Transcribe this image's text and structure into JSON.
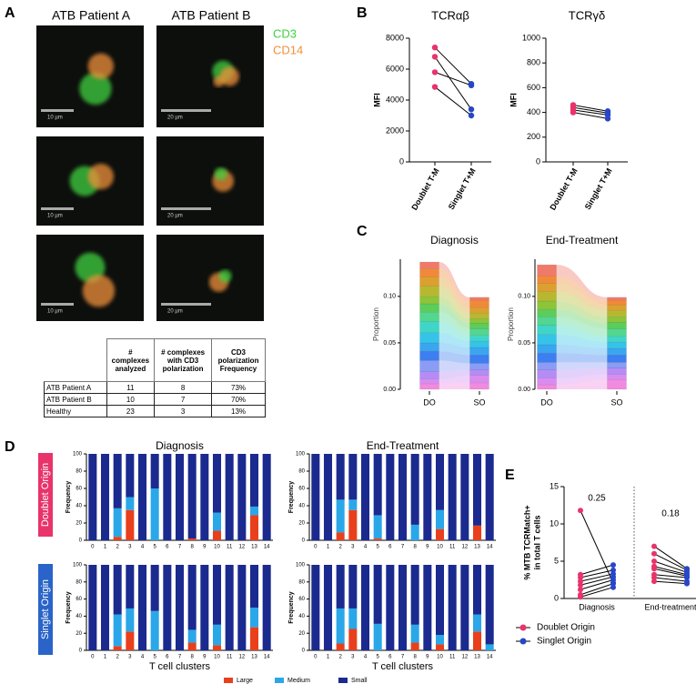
{
  "panel_labels": [
    "A",
    "B",
    "C",
    "D",
    "E"
  ],
  "panel_a": {
    "columns": [
      "ATB Patient A",
      "ATB Patient B"
    ],
    "channels": [
      {
        "name": "CD3",
        "color": "#3fd13f"
      },
      {
        "name": "CD14",
        "color": "#f0903a"
      }
    ],
    "scale_bars": [
      "10 µm",
      "20 µm"
    ]
  },
  "table": {
    "header": [
      "# complexes analyzed",
      "# complexes with CD3 polarization",
      "CD3 polarization Frequency"
    ],
    "rows": [
      [
        "ATB Patient A",
        11,
        8,
        "73%"
      ],
      [
        "ATB Patient B",
        10,
        7,
        "70%"
      ],
      [
        "Healthy",
        23,
        3,
        "13%"
      ]
    ]
  },
  "panel_d": {
    "rows": [
      "Doublet Origin",
      "Singlet Origin"
    ]
  },
  "chart_data": [
    {
      "type": "paired",
      "title": "TCRαβ",
      "ylabel": "MFI",
      "categories": [
        "Doublet T-M",
        "Singlet T+M"
      ],
      "colors": [
        "#e8336b",
        "#2846c8"
      ],
      "ylim": [
        0,
        8000
      ],
      "yticks": [
        0,
        2000,
        4000,
        6000,
        8000
      ],
      "series": [
        {
          "values": [
            7400,
            5050
          ]
        },
        {
          "values": [
            6800,
            3400
          ]
        },
        {
          "values": [
            5800,
            4950
          ]
        },
        {
          "values": [
            4850,
            3000
          ]
        }
      ]
    },
    {
      "type": "paired",
      "title": "TCRγδ",
      "ylabel": "MFI",
      "categories": [
        "Doublet T-M",
        "Singlet T+M"
      ],
      "colors": [
        "#e8336b",
        "#2846c8"
      ],
      "ylim": [
        0,
        1000
      ],
      "yticks": [
        0,
        200,
        400,
        600,
        800,
        1000
      ],
      "series": [
        {
          "values": [
            460,
            410
          ]
        },
        {
          "values": [
            440,
            395
          ]
        },
        {
          "values": [
            420,
            380
          ]
        },
        {
          "values": [
            400,
            350
          ]
        }
      ]
    },
    {
      "type": "alluvial",
      "title": "Diagnosis",
      "ylabel": "Proportion",
      "categories": [
        "DO",
        "SO"
      ],
      "ylim": [
        0,
        0.14
      ],
      "yticks": [
        {
          "value": 0,
          "label": "0.00"
        },
        0.05,
        {
          "value": 0.1,
          "label": "0.10"
        }
      ],
      "series": [
        {
          "color": "#f08be0",
          "values": [
            0.006,
            0.007
          ]
        },
        {
          "color": "#d98bf0",
          "values": [
            0.005,
            0.008
          ]
        },
        {
          "color": "#b58cf5",
          "values": [
            0.008,
            0.006
          ]
        },
        {
          "color": "#8a9cf5",
          "values": [
            0.012,
            0.007
          ]
        },
        {
          "color": "#3d7ef0",
          "values": [
            0.01,
            0.009
          ]
        },
        {
          "color": "#3aa6f0",
          "values": [
            0.009,
            0.008
          ]
        },
        {
          "color": "#35c3e8",
          "values": [
            0.011,
            0.007
          ]
        },
        {
          "color": "#3fd6c8",
          "values": [
            0.012,
            0.006
          ]
        },
        {
          "color": "#52d690",
          "values": [
            0.01,
            0.007
          ]
        },
        {
          "color": "#5ccc5a",
          "values": [
            0.009,
            0.006
          ]
        },
        {
          "color": "#8cc43a",
          "values": [
            0.008,
            0.005
          ]
        },
        {
          "color": "#b8b830",
          "values": [
            0.011,
            0.006
          ]
        },
        {
          "color": "#dca030",
          "values": [
            0.01,
            0.006
          ]
        },
        {
          "color": "#f08a3a",
          "values": [
            0.009,
            0.008
          ]
        },
        {
          "color": "#f07a6a",
          "values": [
            0.007,
            0.003
          ]
        }
      ]
    },
    {
      "type": "alluvial",
      "title": "End-Treatment",
      "ylabel": "Proportion",
      "categories": [
        "DO",
        "SO"
      ],
      "ylim": [
        0,
        0.14
      ],
      "yticks": [
        {
          "value": 0,
          "label": "0.00"
        },
        0.05,
        {
          "value": 0.1,
          "label": "0.10"
        }
      ],
      "series": [
        {
          "color": "#f08be0",
          "values": [
            0.005,
            0.01
          ]
        },
        {
          "color": "#d98bf0",
          "values": [
            0.007,
            0.006
          ]
        },
        {
          "color": "#b58cf5",
          "values": [
            0.009,
            0.007
          ]
        },
        {
          "color": "#8a9cf5",
          "values": [
            0.008,
            0.006
          ]
        },
        {
          "color": "#3d7ef0",
          "values": [
            0.01,
            0.008
          ]
        },
        {
          "color": "#3aa6f0",
          "values": [
            0.009,
            0.007
          ]
        },
        {
          "color": "#35c3e8",
          "values": [
            0.011,
            0.007
          ]
        },
        {
          "color": "#3fd6c8",
          "values": [
            0.01,
            0.006
          ]
        },
        {
          "color": "#52d690",
          "values": [
            0.009,
            0.008
          ]
        },
        {
          "color": "#5ccc5a",
          "values": [
            0.008,
            0.007
          ]
        },
        {
          "color": "#8cc43a",
          "values": [
            0.009,
            0.006
          ]
        },
        {
          "color": "#b8b830",
          "values": [
            0.01,
            0.007
          ]
        },
        {
          "color": "#dca030",
          "values": [
            0.009,
            0.006
          ]
        },
        {
          "color": "#f08a3a",
          "values": [
            0.008,
            0.005
          ]
        },
        {
          "color": "#f07a6a",
          "values": [
            0.012,
            0.003
          ]
        }
      ]
    },
    {
      "type": "stacked_bar",
      "title": "Diagnosis",
      "ylabel": "Frequency",
      "categories": [
        "0",
        "1",
        "2",
        "3",
        "4",
        "5",
        "6",
        "7",
        "8",
        "9",
        "10",
        "11",
        "12",
        "13",
        "14"
      ],
      "ylim": [
        0,
        100
      ],
      "yticks": [
        0,
        20,
        40,
        60,
        80,
        100
      ],
      "series": [
        {
          "name": "Large",
          "color": "#e8401c",
          "values": [
            0,
            0,
            4,
            35,
            0,
            0,
            0,
            0,
            2,
            0,
            11,
            0,
            0,
            29,
            0
          ]
        },
        {
          "name": "Medium",
          "color": "#2aa7e8",
          "values": [
            0,
            0,
            33,
            15,
            0,
            60,
            0,
            0,
            0,
            0,
            21,
            0,
            0,
            10,
            0
          ]
        },
        {
          "name": "Small",
          "color": "#1b2a8e",
          "values": [
            100,
            100,
            63,
            50,
            100,
            40,
            100,
            100,
            98,
            100,
            68,
            100,
            100,
            61,
            100
          ]
        }
      ]
    },
    {
      "type": "stacked_bar",
      "title": "End-Treatment",
      "ylabel": "Frequency",
      "categories": [
        "0",
        "1",
        "2",
        "3",
        "4",
        "5",
        "6",
        "7",
        "8",
        "9",
        "10",
        "11",
        "12",
        "13",
        "14"
      ],
      "ylim": [
        0,
        100
      ],
      "yticks": [
        0,
        20,
        40,
        60,
        80,
        100
      ],
      "series": [
        {
          "name": "Large",
          "color": "#e8401c",
          "values": [
            0,
            0,
            9,
            35,
            0,
            2,
            0,
            0,
            0,
            0,
            13,
            0,
            0,
            17,
            0
          ]
        },
        {
          "name": "Medium",
          "color": "#2aa7e8",
          "values": [
            0,
            0,
            38,
            12,
            0,
            27,
            0,
            0,
            18,
            0,
            22,
            0,
            0,
            0,
            0
          ]
        },
        {
          "name": "Small",
          "color": "#1b2a8e",
          "values": [
            100,
            100,
            53,
            53,
            100,
            71,
            100,
            100,
            82,
            100,
            65,
            100,
            100,
            83,
            100
          ]
        }
      ]
    },
    {
      "type": "stacked_bar",
      "xlabel": "T cell clusters",
      "ylabel": "Frequency",
      "categories": [
        "0",
        "1",
        "2",
        "3",
        "4",
        "5",
        "6",
        "7",
        "8",
        "9",
        "10",
        "11",
        "12",
        "13",
        "14"
      ],
      "ylim": [
        0,
        100
      ],
      "yticks": [
        0,
        20,
        40,
        60,
        80,
        100
      ],
      "series": [
        {
          "name": "Large",
          "color": "#e8401c",
          "values": [
            0,
            0,
            5,
            22,
            0,
            0,
            0,
            0,
            9,
            0,
            6,
            0,
            0,
            27,
            0
          ]
        },
        {
          "name": "Medium",
          "color": "#2aa7e8",
          "values": [
            0,
            0,
            37,
            27,
            0,
            46,
            0,
            0,
            15,
            0,
            24,
            0,
            0,
            23,
            0
          ]
        },
        {
          "name": "Small",
          "color": "#1b2a8e",
          "values": [
            100,
            100,
            58,
            51,
            100,
            54,
            100,
            100,
            76,
            100,
            70,
            100,
            100,
            50,
            100
          ]
        }
      ]
    },
    {
      "type": "stacked_bar",
      "xlabel": "T cell clusters",
      "ylabel": "Frequency",
      "categories": [
        "0",
        "1",
        "2",
        "3",
        "4",
        "5",
        "6",
        "7",
        "8",
        "9",
        "10",
        "11",
        "12",
        "13",
        "14"
      ],
      "ylim": [
        0,
        100
      ],
      "yticks": [
        0,
        20,
        40,
        60,
        80,
        100
      ],
      "series": [
        {
          "name": "Large",
          "color": "#e8401c",
          "values": [
            0,
            0,
            8,
            25,
            0,
            0,
            0,
            0,
            9,
            0,
            7,
            0,
            0,
            22,
            0
          ]
        },
        {
          "name": "Medium",
          "color": "#2aa7e8",
          "values": [
            0,
            0,
            41,
            24,
            0,
            31,
            0,
            0,
            21,
            0,
            11,
            0,
            0,
            20,
            7
          ]
        },
        {
          "name": "Small",
          "color": "#1b2a8e",
          "values": [
            100,
            100,
            51,
            51,
            100,
            69,
            100,
            100,
            70,
            100,
            82,
            100,
            100,
            58,
            93
          ]
        }
      ]
    },
    {
      "type": "paired_dot",
      "ylabel": [
        "% MTB TCRMatch+",
        "in total T cells"
      ],
      "categories": [
        "Diagnosis",
        "End-treatment"
      ],
      "ylim": [
        0,
        15
      ],
      "yticks": [
        0,
        5,
        10,
        15
      ],
      "annotations": [
        0.25,
        0.18
      ],
      "series": [
        {
          "name": "Doublet Origin",
          "color": "#e8336b",
          "values": [
            [
              11.8,
              3.2,
              2.8,
              2.3,
              1.8,
              1.2,
              0.5,
              0.2
            ],
            [
              7.0,
              6.0,
              5.0,
              4.3,
              4.0,
              3.2,
              2.8,
              2.3
            ]
          ]
        },
        {
          "name": "Singlet Origin",
          "color": "#2846c8",
          "values": [
            [
              2.1,
              4.5,
              3.8,
              3.3,
              2.9,
              2.5,
              2.0,
              1.5
            ],
            [
              4.0,
              3.8,
              3.5,
              3.2,
              3.0,
              2.8,
              2.3,
              2.0
            ]
          ]
        }
      ]
    }
  ]
}
